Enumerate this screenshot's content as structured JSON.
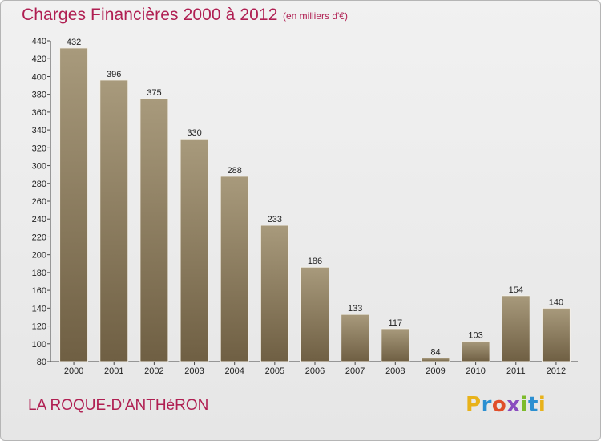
{
  "title": "Charges Financières 2000 à 2012",
  "subtitle": "(en milliers d'€)",
  "commune": "LA ROQUE-D'ANTHéRON",
  "logo": {
    "p": "P",
    "r": "r",
    "o": "o",
    "x": "x",
    "i1": "i",
    "t": "t",
    "i2": "i"
  },
  "colors": {
    "title": "#b01f52",
    "bar_top": "#a89a7c",
    "bar_bottom": "#6f5f43",
    "bar_edge": "#f2efe8"
  },
  "chart_data": {
    "type": "bar",
    "categories": [
      "2000",
      "2001",
      "2002",
      "2003",
      "2004",
      "2005",
      "2006",
      "2007",
      "2008",
      "2009",
      "2010",
      "2011",
      "2012"
    ],
    "values": [
      432,
      396,
      375,
      330,
      288,
      233,
      186,
      133,
      117,
      84,
      103,
      154,
      140
    ],
    "ylim": [
      80,
      440
    ],
    "yticks": [
      80,
      100,
      120,
      140,
      160,
      180,
      200,
      220,
      240,
      260,
      280,
      300,
      320,
      340,
      360,
      380,
      400,
      420,
      440
    ],
    "grid": false,
    "xlabel": "",
    "ylabel": ""
  }
}
